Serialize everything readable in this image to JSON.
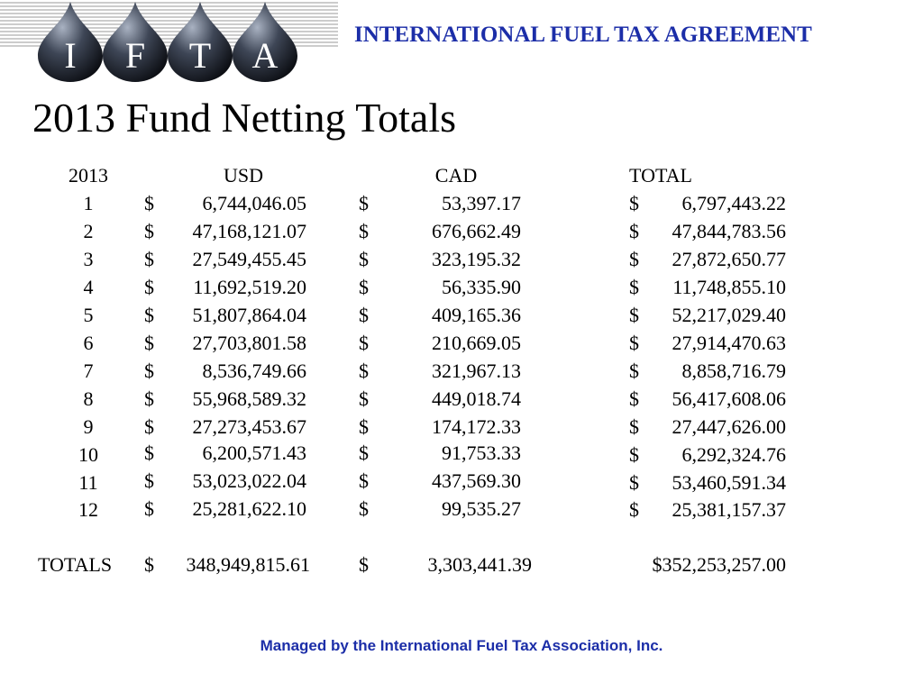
{
  "header": {
    "logo_letters": [
      "I",
      "F",
      "T",
      "A"
    ],
    "title": "INTERNATIONAL FUEL TAX AGREEMENT"
  },
  "page_title": "2013 Fund Netting Totals",
  "table": {
    "columns": [
      "2013",
      "USD",
      "CAD",
      "TOTAL"
    ],
    "currency_symbol": "$",
    "rows": [
      {
        "month": "1",
        "usd": "6,744,046.05",
        "cad": "53,397.17",
        "total": "6,797,443.22"
      },
      {
        "month": "2",
        "usd": "47,168,121.07",
        "cad": "676,662.49",
        "total": "47,844,783.56"
      },
      {
        "month": "3",
        "usd": "27,549,455.45",
        "cad": "323,195.32",
        "total": "27,872,650.77"
      },
      {
        "month": "4",
        "usd": "11,692,519.20",
        "cad": "56,335.90",
        "total": "11,748,855.10"
      },
      {
        "month": "5",
        "usd": "51,807,864.04",
        "cad": "409,165.36",
        "total": "52,217,029.40"
      },
      {
        "month": "6",
        "usd": "27,703,801.58",
        "cad": "210,669.05",
        "total": "27,914,470.63"
      },
      {
        "month": "7",
        "usd": "8,536,749.66",
        "cad": "321,967.13",
        "total": "8,858,716.79"
      },
      {
        "month": "8",
        "usd": "55,968,589.32",
        "cad": "449,018.74",
        "total": "56,417,608.06"
      },
      {
        "month": "9",
        "usd": "27,273,453.67",
        "cad": "174,172.33",
        "total": "27,447,626.00"
      },
      {
        "month": "10",
        "usd": "6,200,571.43",
        "cad": "91,753.33",
        "total": "6,292,324.76"
      },
      {
        "month": "11",
        "usd": "53,023,022.04",
        "cad": "437,569.30",
        "total": "53,460,591.34"
      },
      {
        "month": "12",
        "usd": "25,281,622.10",
        "cad": "99,535.27",
        "total": "25,381,157.37"
      }
    ],
    "totals": {
      "label": "TOTALS",
      "usd": "348,949,815.61",
      "cad": "3,303,441.39",
      "total": "$352,253,257.00"
    }
  },
  "footer": "Managed by the International Fuel Tax Association, Inc.",
  "colors": {
    "accent": "#1c2ea8"
  }
}
